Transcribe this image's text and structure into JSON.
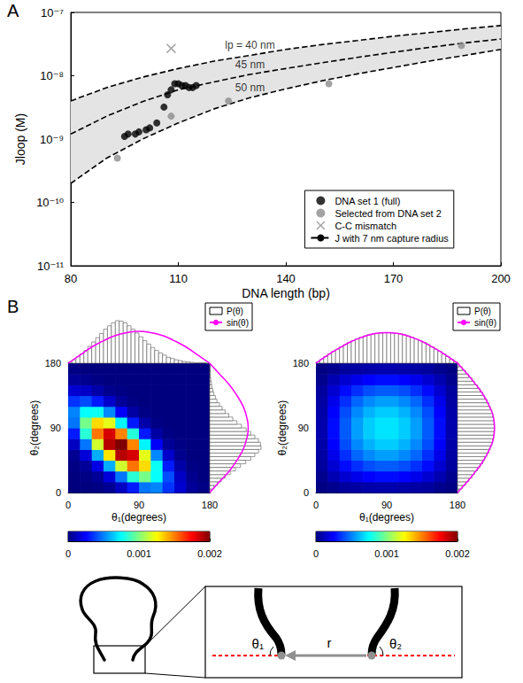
{
  "chart_data": [
    {
      "panel_label": "A",
      "type": "scatter",
      "x_label": "DNA length (bp)",
      "y_label": "Jloop (M)",
      "xlim": [
        80,
        200
      ],
      "xticks": [
        80,
        110,
        140,
        170,
        200
      ],
      "ylim": [
        1e-11,
        1e-07
      ],
      "yticks": [
        {
          "value": 1e-11,
          "label": "10⁻¹¹"
        },
        {
          "value": 1e-10,
          "label": "10⁻¹⁰"
        },
        {
          "value": 1e-09,
          "label": "10⁻⁹"
        },
        {
          "value": 1e-08,
          "label": "10⁻⁸"
        },
        {
          "value": 1e-07,
          "label": "10⁻⁷"
        }
      ],
      "log": "y",
      "grid": false,
      "legend": "lower right",
      "series": [
        {
          "name": "DNA set 1 (full)",
          "type": "scatter",
          "marker": "circle",
          "color": "#000000",
          "x": [
            95,
            96,
            98,
            99,
            101,
            102,
            104,
            106,
            107,
            108,
            109,
            110,
            111,
            112,
            113,
            114,
            115
          ],
          "values": [
            1.1e-09,
            1.2e-09,
            1.2e-09,
            1.3e-09,
            1.4e-09,
            1.5e-09,
            1.8e-09,
            3.2e-09,
            5e-09,
            6e-09,
            7.5e-09,
            7.5e-09,
            7e-09,
            7e-09,
            6.5e-09,
            6.5e-09,
            7e-09
          ]
        },
        {
          "name": "Selected from DNA set 2",
          "type": "scatter",
          "marker": "circle",
          "color": "#8c8c8c",
          "x": [
            93,
            108,
            124,
            152,
            189
          ],
          "values": [
            5e-10,
            2.3e-09,
            4e-09,
            7.5e-09,
            3e-08
          ]
        },
        {
          "name": "C-C mismatch",
          "type": "scatter",
          "marker": "x",
          "color": "#8c8c8c",
          "x": [
            108
          ],
          "values": [
            2.7e-08
          ]
        },
        {
          "name": "J with 7 nm capture radius",
          "type": "line",
          "line_style": "dashed",
          "color": "#000000",
          "label": "lp = 40 nm",
          "x": [
            80,
            90,
            100,
            110,
            120,
            130,
            140,
            150,
            160,
            170,
            180,
            190,
            200
          ],
          "values": [
            4e-09,
            6.5e-09,
            9.5e-09,
            1.3e-08,
            1.7e-08,
            2.1e-08,
            2.6e-08,
            3.1e-08,
            3.6e-08,
            4.2e-08,
            4.8e-08,
            5.5e-08,
            6.2e-08
          ]
        },
        {
          "name": "J with 7 nm capture radius",
          "type": "line",
          "line_style": "dashed",
          "color": "#000000",
          "label": "45 nm",
          "x": [
            80,
            90,
            100,
            110,
            120,
            130,
            140,
            150,
            160,
            170,
            180,
            190,
            200
          ],
          "values": [
            1.2e-09,
            2.3e-09,
            3.9e-09,
            6e-09,
            8e-09,
            1.05e-08,
            1.3e-08,
            1.6e-08,
            1.95e-08,
            2.35e-08,
            2.8e-08,
            3.3e-08,
            3.8e-08
          ]
        },
        {
          "name": "J with 7 nm capture radius",
          "type": "line",
          "line_style": "dashed",
          "color": "#000000",
          "label": "50 nm",
          "x": [
            80,
            90,
            100,
            110,
            120,
            130,
            140,
            150,
            160,
            170,
            180,
            190,
            200
          ],
          "values": [
            2e-10,
            5e-10,
            1e-09,
            1.8e-09,
            3e-09,
            4.5e-09,
            6.2e-09,
            8.3e-09,
            1.07e-08,
            1.35e-08,
            1.7e-08,
            2.1e-08,
            2.6e-08
          ]
        }
      ]
    },
    {
      "panel_label": "B",
      "type": "heatmap",
      "x_label": "θ₁(degrees)",
      "y_label": "θ₂(degrees)",
      "xlim": [
        0,
        180
      ],
      "xticks": [
        0,
        90,
        180
      ],
      "ylim": [
        0,
        180
      ],
      "yticks": [
        0,
        90,
        180
      ],
      "bins": [
        0,
        15,
        30,
        45,
        60,
        75,
        90,
        105,
        120,
        135,
        150,
        165,
        180
      ],
      "cells": [
        [
          0,
          0,
          1e-05,
          4e-05,
          0.00013,
          0.0003,
          0.00048,
          0.00051,
          0.00035,
          0.00016,
          5e-05,
          1e-05
        ],
        [
          0,
          1e-05,
          5e-05,
          0.00018,
          0.00048,
          0.00083,
          0.00098,
          0.00076,
          0.0004,
          0.00014,
          3e-05,
          0
        ],
        [
          1e-05,
          5e-05,
          0.0002,
          0.00059,
          0.00116,
          0.00152,
          0.00132,
          0.00077,
          0.0003,
          8e-05,
          1e-05,
          0
        ],
        [
          4e-05,
          0.00018,
          0.00059,
          0.0013,
          0.00189,
          0.00183,
          0.0012,
          0.00052,
          0.00015,
          3e-05,
          0,
          0
        ],
        [
          0.00013,
          0.00048,
          0.00116,
          0.00189,
          0.002,
          0.00149,
          0.00073,
          0.00024,
          5e-05,
          1e-05,
          0,
          0
        ],
        [
          0.0003,
          0.00083,
          0.00152,
          0.00183,
          0.00149,
          0.00082,
          0.0003,
          7e-05,
          1e-05,
          0,
          0,
          0
        ],
        [
          0.00048,
          0.00098,
          0.00132,
          0.0012,
          0.00073,
          0.0003,
          8e-05,
          1e-05,
          0,
          0,
          0,
          0
        ],
        [
          0.00051,
          0.00076,
          0.00077,
          0.00052,
          0.00024,
          7e-05,
          1e-05,
          0,
          0,
          0,
          0,
          0
        ],
        [
          0.00035,
          0.0004,
          0.0003,
          0.00015,
          5e-05,
          1e-05,
          0,
          0,
          0,
          0,
          0,
          0
        ],
        [
          0.00016,
          0.00014,
          8e-05,
          3e-05,
          1e-05,
          0,
          0,
          0,
          0,
          0,
          0,
          0
        ],
        [
          5e-05,
          3e-05,
          1e-05,
          0,
          0,
          0,
          0,
          0,
          0,
          0,
          0,
          0
        ],
        [
          1e-05,
          0,
          0,
          0,
          0,
          0,
          0,
          0,
          0,
          0,
          0,
          0
        ]
      ],
      "colorbar": {
        "range": [
          0,
          0.002
        ],
        "ticks": [
          0,
          0.001,
          0.002
        ]
      },
      "legend": "upper right",
      "histogram": {
        "name": "P(θ)",
        "type": "bar",
        "tick_labels": false,
        "ylim": [
          0,
          1
        ],
        "bins": [
          0,
          5,
          10,
          15,
          20,
          25,
          30,
          35,
          40,
          45,
          50,
          55,
          60,
          65,
          70,
          75,
          80,
          85,
          90,
          95,
          100,
          105,
          110,
          115,
          120,
          125,
          130,
          135,
          140,
          145,
          150,
          155,
          160,
          165,
          170,
          175,
          180
        ],
        "top": [
          0.02,
          0.08,
          0.15,
          0.22,
          0.3,
          0.4,
          0.5,
          0.6,
          0.7,
          0.8,
          0.88,
          0.95,
          1.0,
          0.99,
          0.95,
          0.88,
          0.8,
          0.71,
          0.62,
          0.53,
          0.45,
          0.37,
          0.3,
          0.24,
          0.19,
          0.14,
          0.11,
          0.08,
          0.06,
          0.04,
          0.03,
          0.02,
          0.01,
          0.01,
          0.01,
          0
        ],
        "right": [
          0.02,
          0.08,
          0.15,
          0.22,
          0.3,
          0.4,
          0.5,
          0.6,
          0.7,
          0.8,
          0.88,
          0.95,
          1.0,
          0.99,
          0.95,
          0.88,
          0.8,
          0.71,
          0.62,
          0.53,
          0.45,
          0.37,
          0.3,
          0.24,
          0.19,
          0.14,
          0.11,
          0.08,
          0.06,
          0.04,
          0.03,
          0.02,
          0.01,
          0.01,
          0.01,
          0
        ]
      },
      "curve": {
        "name": "sin(θ)",
        "type": "line",
        "color": "#ff00ff",
        "x": [
          0,
          15,
          30,
          45,
          60,
          75,
          90,
          105,
          120,
          135,
          150,
          165,
          180
        ],
        "values": [
          0,
          0.19,
          0.38,
          0.53,
          0.65,
          0.72,
          0.75,
          0.72,
          0.65,
          0.53,
          0.38,
          0.19,
          0
        ]
      }
    },
    {
      "type": "heatmap",
      "x_label": "θ₁(degrees)",
      "y_label": "θ₂(degrees)",
      "xlim": [
        0,
        180
      ],
      "xticks": [
        0,
        90,
        180
      ],
      "ylim": [
        0,
        180
      ],
      "yticks": [
        0,
        90,
        180
      ],
      "bins": [
        0,
        15,
        30,
        45,
        60,
        75,
        90,
        105,
        120,
        135,
        150,
        165,
        180
      ],
      "cells": [
        [
          1e-05,
          3e-05,
          6e-05,
          7e-05,
          8e-05,
          9e-05,
          9e-05,
          8e-05,
          7e-05,
          6e-05,
          3e-05,
          1e-05
        ],
        [
          3e-05,
          0.0001,
          0.00016,
          0.00021,
          0.00025,
          0.00027,
          0.00027,
          0.00025,
          0.00021,
          0.00016,
          0.0001,
          3e-05
        ],
        [
          6e-05,
          0.00016,
          0.00027,
          0.00034,
          0.0004,
          0.00043,
          0.00043,
          0.0004,
          0.00034,
          0.00027,
          0.00016,
          6e-05
        ],
        [
          7e-05,
          0.00021,
          0.00034,
          0.00045,
          0.00052,
          0.00056,
          0.00056,
          0.00052,
          0.00045,
          0.00034,
          0.00021,
          7e-05
        ],
        [
          8e-05,
          0.00025,
          0.0004,
          0.00052,
          0.0006,
          0.00065,
          0.00065,
          0.0006,
          0.00052,
          0.0004,
          0.00025,
          8e-05
        ],
        [
          9e-05,
          0.00027,
          0.00043,
          0.00056,
          0.00065,
          0.0007,
          0.0007,
          0.00065,
          0.00056,
          0.00043,
          0.00027,
          9e-05
        ],
        [
          9e-05,
          0.00027,
          0.00043,
          0.00056,
          0.00065,
          0.0007,
          0.0007,
          0.00065,
          0.00056,
          0.00043,
          0.00027,
          9e-05
        ],
        [
          8e-05,
          0.00025,
          0.0004,
          0.00052,
          0.0006,
          0.00065,
          0.00065,
          0.0006,
          0.00052,
          0.0004,
          0.00025,
          8e-05
        ],
        [
          7e-05,
          0.00021,
          0.00034,
          0.00045,
          0.00052,
          0.00056,
          0.00056,
          0.00052,
          0.00045,
          0.00034,
          0.00021,
          7e-05
        ],
        [
          6e-05,
          0.00016,
          0.00027,
          0.00034,
          0.0004,
          0.00043,
          0.00043,
          0.0004,
          0.00034,
          0.00027,
          0.00016,
          6e-05
        ],
        [
          3e-05,
          0.0001,
          0.00016,
          0.00021,
          0.00025,
          0.00027,
          0.00027,
          0.00025,
          0.00021,
          0.00016,
          0.0001,
          3e-05
        ],
        [
          1e-05,
          3e-05,
          6e-05,
          7e-05,
          8e-05,
          9e-05,
          9e-05,
          8e-05,
          7e-05,
          6e-05,
          3e-05,
          1e-05
        ]
      ],
      "colorbar": {
        "range": [
          0,
          0.002
        ],
        "ticks": [
          0,
          0.001,
          0.002
        ]
      },
      "legend": "upper right",
      "histogram": {
        "name": "P(θ)",
        "type": "bar",
        "tick_labels": false,
        "ylim": [
          0,
          1
        ],
        "bins": [
          0,
          5,
          10,
          15,
          20,
          25,
          30,
          35,
          40,
          45,
          50,
          55,
          60,
          65,
          70,
          75,
          80,
          85,
          90,
          95,
          100,
          105,
          110,
          115,
          120,
          125,
          130,
          135,
          140,
          145,
          150,
          155,
          160,
          165,
          170,
          175,
          180
        ],
        "top": [
          0.03,
          0.09,
          0.16,
          0.22,
          0.28,
          0.33,
          0.39,
          0.44,
          0.49,
          0.53,
          0.57,
          0.61,
          0.64,
          0.67,
          0.69,
          0.7,
          0.71,
          0.72,
          0.72,
          0.71,
          0.7,
          0.69,
          0.67,
          0.64,
          0.61,
          0.57,
          0.53,
          0.49,
          0.44,
          0.39,
          0.33,
          0.28,
          0.22,
          0.16,
          0.09,
          0.03
        ],
        "right": [
          0.03,
          0.09,
          0.16,
          0.22,
          0.28,
          0.33,
          0.39,
          0.44,
          0.49,
          0.53,
          0.57,
          0.61,
          0.64,
          0.67,
          0.69,
          0.7,
          0.71,
          0.72,
          0.72,
          0.71,
          0.7,
          0.69,
          0.67,
          0.64,
          0.61,
          0.57,
          0.53,
          0.49,
          0.44,
          0.39,
          0.33,
          0.28,
          0.22,
          0.16,
          0.09,
          0.03
        ]
      },
      "curve": {
        "name": "sin(θ)",
        "type": "line",
        "color": "#ff00ff",
        "x": [
          0,
          15,
          30,
          45,
          60,
          75,
          90,
          105,
          120,
          135,
          150,
          165,
          180
        ],
        "values": [
          0,
          0.19,
          0.36,
          0.51,
          0.62,
          0.7,
          0.72,
          0.7,
          0.62,
          0.51,
          0.36,
          0.19,
          0
        ]
      }
    }
  ],
  "diagram": {
    "theta1": "θ₁",
    "theta2": "θ₂",
    "r": "r"
  }
}
